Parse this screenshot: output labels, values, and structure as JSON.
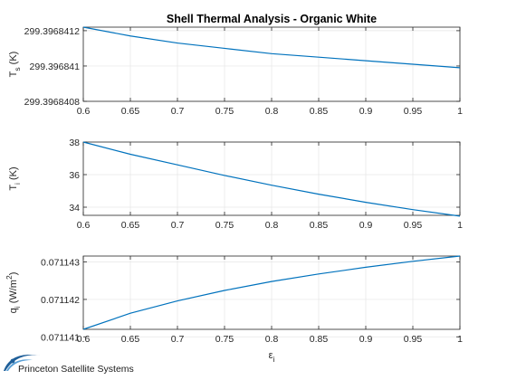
{
  "title": "Shell Thermal Analysis - Organic White",
  "xlabel_symbol": "ε",
  "xlabel_sub": "i",
  "logo": {
    "text": "Princeton Satellite Systems",
    "color": "#1f5f99"
  },
  "series_color": "#0072BD",
  "chart_data": [
    {
      "type": "line",
      "ylabel_main": "T",
      "ylabel_sub": "s",
      "ylabel_rest": " (K)",
      "x": [
        0.6,
        0.65,
        0.7,
        0.75,
        0.8,
        0.85,
        0.9,
        0.95,
        1.0
      ],
      "y": [
        299.39684122,
        299.39684117,
        299.39684113,
        299.3968411,
        299.39684107,
        299.39684105,
        299.39684103,
        299.39684101,
        299.39684099
      ],
      "xlim": [
        0.6,
        1
      ],
      "ylim": [
        299.3968408,
        299.39684122
      ],
      "xticks": [
        0.6,
        0.65,
        0.7,
        0.75,
        0.8,
        0.85,
        0.9,
        0.95,
        1
      ],
      "xtick_labels": [
        "0.6",
        "0.65",
        "0.7",
        "0.75",
        "0.8",
        "0.85",
        "0.9",
        "0.95",
        "1"
      ],
      "yticks": [
        299.3968408,
        299.396841,
        299.3968412
      ],
      "ytick_labels": [
        "299.3968408",
        "299.396841",
        "299.3968412"
      ],
      "grid": true
    },
    {
      "type": "line",
      "ylabel_main": "T",
      "ylabel_sub": "i",
      "ylabel_rest": " (K)",
      "x": [
        0.6,
        0.65,
        0.7,
        0.75,
        0.8,
        0.85,
        0.9,
        0.95,
        1.0
      ],
      "y": [
        38.0,
        37.25,
        36.6,
        35.95,
        35.35,
        34.8,
        34.3,
        33.85,
        33.45
      ],
      "xlim": [
        0.6,
        1
      ],
      "ylim": [
        33.5,
        38
      ],
      "xticks": [
        0.6,
        0.65,
        0.7,
        0.75,
        0.8,
        0.85,
        0.9,
        0.95,
        1
      ],
      "xtick_labels": [
        "0.6",
        "0.65",
        "0.7",
        "0.75",
        "0.8",
        "0.85",
        "0.9",
        "0.95",
        "1"
      ],
      "yticks": [
        34,
        36,
        38
      ],
      "ytick_labels": [
        "34",
        "36",
        "38"
      ],
      "grid": true
    },
    {
      "type": "line",
      "ylabel_main": "q",
      "ylabel_sub": "i",
      "ylabel_rest": " (W/m",
      "ylabel_sup": "2",
      "ylabel_end": ")",
      "x": [
        0.6,
        0.65,
        0.7,
        0.75,
        0.8,
        0.85,
        0.9,
        0.95,
        1.0
      ],
      "y": [
        0.0711412,
        0.07114163,
        0.07114196,
        0.07114224,
        0.07114248,
        0.07114268,
        0.07114286,
        0.07114302,
        0.07114316
      ],
      "xlim": [
        0.6,
        1
      ],
      "ylim": [
        0.0711412,
        0.07114316
      ],
      "xticks": [
        0.6,
        0.65,
        0.7,
        0.75,
        0.8,
        0.85,
        0.9,
        0.95,
        1
      ],
      "xtick_labels": [
        "0.6",
        "0.65",
        "0.7",
        "0.75",
        "0.8",
        "0.85",
        "0.9",
        "0.95",
        "1"
      ],
      "yticks": [
        0.071141,
        0.071142,
        0.071143
      ],
      "ytick_labels": [
        "0.071141",
        "0.071142",
        "0.071143"
      ],
      "grid": true
    }
  ]
}
